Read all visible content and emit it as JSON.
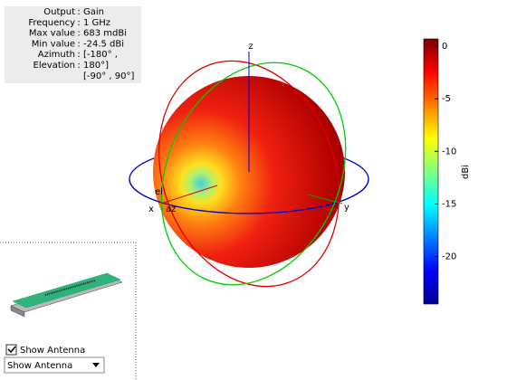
{
  "info": {
    "rows": [
      [
        "Output",
        "Gain"
      ],
      [
        "Frequency",
        "1 GHz"
      ],
      [
        "Max value",
        "683 mdBi"
      ],
      [
        "Min value",
        "-24.5 dBi"
      ],
      [
        "Azimuth",
        "[-180° ,"
      ],
      [
        "Elevation",
        "180°]"
      ]
    ],
    "extra": "[-90° , 90°]"
  },
  "colorbar": {
    "label": "dBi",
    "clim": [
      -24.5,
      0.683
    ],
    "ticks": [
      0,
      -5,
      -10,
      -15,
      -20
    ]
  },
  "axes": {
    "x": "x",
    "y": "y",
    "z": "z",
    "az": "az",
    "el": "el"
  },
  "controls": {
    "checkbox": "Show Antenna",
    "dropdown": "Show Antenna"
  }
}
